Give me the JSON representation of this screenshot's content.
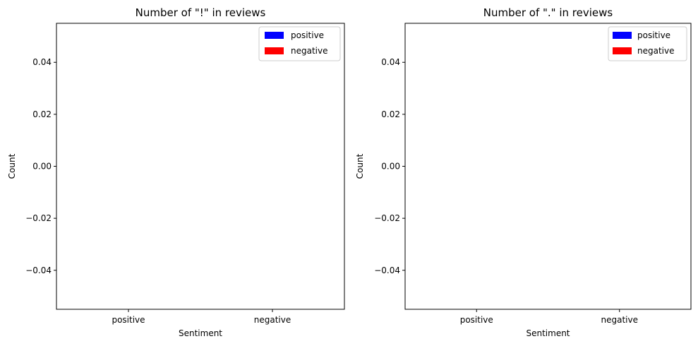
{
  "chart_data": [
    {
      "type": "bar",
      "title": "Number of \"!\" in reviews",
      "xlabel": "Sentiment",
      "ylabel": "Count",
      "categories": [
        "positive",
        "negative"
      ],
      "series": [
        {
          "name": "positive",
          "values": [
            0,
            null
          ],
          "color": "#0000ff"
        },
        {
          "name": "negative",
          "values": [
            null,
            0
          ],
          "color": "#ff0000"
        }
      ],
      "ylim": [
        -0.055,
        0.055
      ],
      "yticks": [
        -0.04,
        -0.02,
        0.0,
        0.02,
        0.04
      ],
      "ytick_labels": [
        "−0.04",
        "−0.02",
        "0.00",
        "0.02",
        "0.04"
      ],
      "grid": false,
      "legend_position": "top-right"
    },
    {
      "type": "bar",
      "title": "Number of \".\" in reviews",
      "xlabel": "Sentiment",
      "ylabel": "Count",
      "categories": [
        "positive",
        "negative"
      ],
      "series": [
        {
          "name": "positive",
          "values": [
            0,
            null
          ],
          "color": "#0000ff"
        },
        {
          "name": "negative",
          "values": [
            null,
            0
          ],
          "color": "#ff0000"
        }
      ],
      "ylim": [
        -0.055,
        0.055
      ],
      "yticks": [
        -0.04,
        -0.02,
        0.0,
        0.02,
        0.04
      ],
      "ytick_labels": [
        "−0.04",
        "−0.02",
        "0.00",
        "0.02",
        "0.04"
      ],
      "grid": false,
      "legend_position": "top-right"
    }
  ]
}
